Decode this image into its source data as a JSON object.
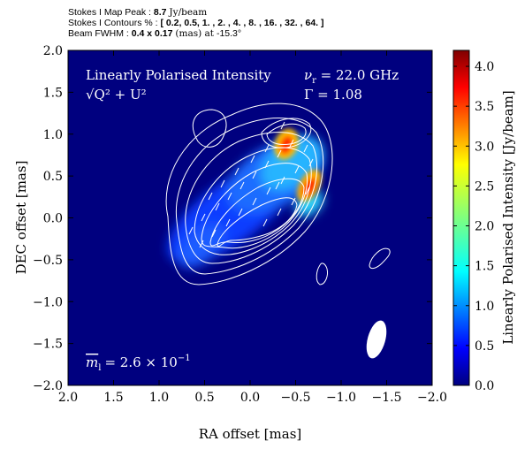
{
  "header": {
    "peak_label": "Stokes I Map Peak :",
    "peak_value": "8.7",
    "peak_unit": "Jy/beam",
    "contours_label": "Stokes I Contours % :",
    "contours_value": "[ 0.2, 0.5, 1. , 2. , 4. , 8. , 16. , 32. , 64. ]",
    "beam_label": "Beam FWHM :",
    "beam_value": "0.4 x 0.17",
    "beam_unit": "(mas) at",
    "beam_angle": "-15.3°"
  },
  "plot": {
    "title_line1": "Linearly Polarised Intensity",
    "title_line2": "√Q² + U²",
    "nu_label": "ν",
    "nu_sub": "r",
    "nu_value": " = 22.0 GHz",
    "gamma_text": "Γ = 1.08",
    "m_label": "m",
    "m_sub": "l",
    "m_value": "=  2.6 × 10",
    "m_exp": "−1",
    "background_color": "#00007f",
    "contour_color": "#ffffff"
  },
  "chart_data": {
    "type": "heatmap",
    "xlabel": "RA offset [mas]",
    "ylabel": "DEC offset [mas]",
    "xlim": [
      2.0,
      -2.0
    ],
    "ylim": [
      -2.0,
      2.0
    ],
    "xticks": [
      "2.0",
      "1.5",
      "1.0",
      "0.5",
      "0.0",
      "−0.5",
      "−1.0",
      "−1.5",
      "−2.0"
    ],
    "yticks": [
      "2.0",
      "1.5",
      "1.0",
      "0.5",
      "0.0",
      "−0.5",
      "−1.0",
      "−1.5",
      "−2.0"
    ],
    "colorbar": {
      "label": "Linearly Polarised Intensity [Jy/beam]",
      "range": [
        0.0,
        4.2
      ],
      "ticks": [
        "0.0",
        "0.5",
        "1.0",
        "1.5",
        "2.0",
        "2.5",
        "3.0",
        "3.5",
        "4.0"
      ],
      "colormap": "jet"
    },
    "peaks": [
      {
        "x": -0.48,
        "y": 0.62,
        "value": 4.1
      },
      {
        "x": -0.68,
        "y": 0.33,
        "value": 3.8
      }
    ],
    "beam": {
      "major": 0.4,
      "minor": 0.17,
      "pa_deg": -15.3,
      "x": -1.6,
      "y": -1.5
    }
  }
}
